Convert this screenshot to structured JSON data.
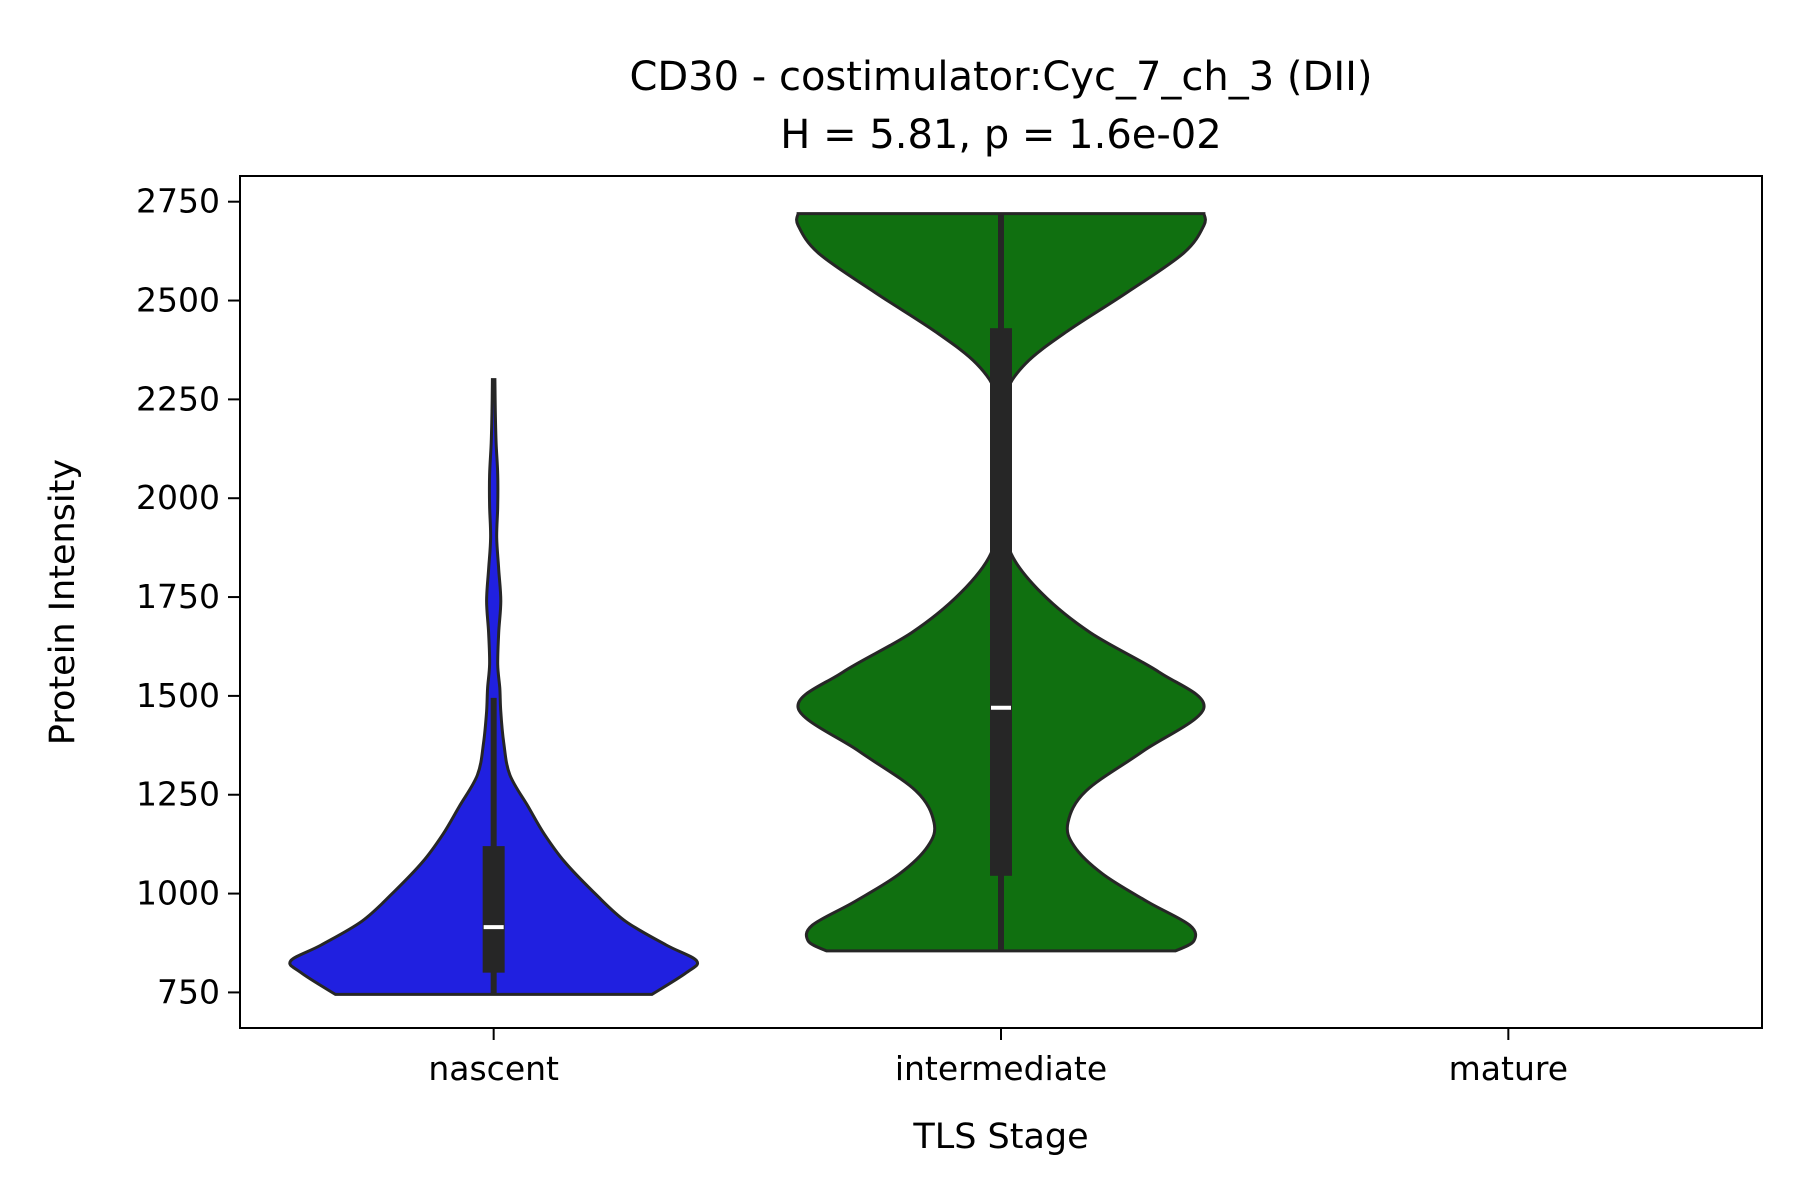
{
  "chart_data": {
    "type": "violin",
    "title": "CD30 - costimulator:Cyc_7_ch_3 (DII)",
    "subtitle": "H = 5.81, p = 1.6e-02",
    "xlabel": "TLS Stage",
    "ylabel": "Protein Intensity",
    "categories": [
      "nascent",
      "intermediate",
      "mature"
    ],
    "ylim": [
      660,
      2815
    ],
    "yticks": [
      750,
      1000,
      1250,
      1500,
      1750,
      2000,
      2250,
      2500,
      2750
    ],
    "grid": false,
    "series": [
      {
        "category": "nascent",
        "color": "#2020e0",
        "min": 745,
        "max": 2300,
        "q1": 800,
        "median": 915,
        "q3": 1120,
        "whisker_low": 745,
        "whisker_high": 1495,
        "density": [
          [
            745,
            0.78
          ],
          [
            800,
            0.95
          ],
          [
            830,
            1.0
          ],
          [
            870,
            0.85
          ],
          [
            930,
            0.65
          ],
          [
            1000,
            0.5
          ],
          [
            1080,
            0.35
          ],
          [
            1150,
            0.25
          ],
          [
            1220,
            0.17
          ],
          [
            1300,
            0.08
          ],
          [
            1380,
            0.05
          ],
          [
            1460,
            0.035
          ],
          [
            1520,
            0.03
          ],
          [
            1580,
            0.02
          ],
          [
            1660,
            0.025
          ],
          [
            1740,
            0.035
          ],
          [
            1820,
            0.025
          ],
          [
            1900,
            0.015
          ],
          [
            1980,
            0.02
          ],
          [
            2060,
            0.02
          ],
          [
            2140,
            0.012
          ],
          [
            2220,
            0.008
          ],
          [
            2300,
            0.006
          ]
        ]
      },
      {
        "category": "intermediate",
        "color": "#107010",
        "min": 855,
        "max": 2720,
        "q1": 1045,
        "median": 1470,
        "q3": 2430,
        "whisker_low": 855,
        "whisker_high": 2720,
        "density": [
          [
            855,
            0.86
          ],
          [
            880,
            0.95
          ],
          [
            920,
            0.93
          ],
          [
            980,
            0.72
          ],
          [
            1050,
            0.5
          ],
          [
            1120,
            0.36
          ],
          [
            1180,
            0.33
          ],
          [
            1260,
            0.42
          ],
          [
            1360,
            0.7
          ],
          [
            1470,
            1.0
          ],
          [
            1560,
            0.78
          ],
          [
            1660,
            0.44
          ],
          [
            1760,
            0.2
          ],
          [
            1860,
            0.05
          ],
          [
            1960,
            0.02
          ],
          [
            2060,
            0.01
          ],
          [
            2160,
            0.008
          ],
          [
            2260,
            0.02
          ],
          [
            2340,
            0.12
          ],
          [
            2420,
            0.32
          ],
          [
            2520,
            0.62
          ],
          [
            2620,
            0.9
          ],
          [
            2690,
            1.0
          ],
          [
            2720,
            1.0
          ]
        ]
      }
    ]
  }
}
